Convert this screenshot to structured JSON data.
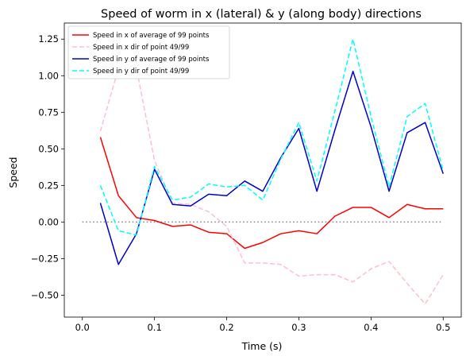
{
  "chart_data": {
    "type": "line",
    "title": "Speed of worm in x (lateral) & y (along body) directions",
    "xlabel": "Time (s)",
    "ylabel": "Speed",
    "xlim": [
      -0.025,
      0.525
    ],
    "ylim": [
      -0.65,
      1.36
    ],
    "xticks": [
      0.0,
      0.1,
      0.2,
      0.3,
      0.4,
      0.5
    ],
    "xtick_labels": [
      "0.0",
      "0.1",
      "0.2",
      "0.3",
      "0.4",
      "0.5"
    ],
    "yticks": [
      -0.5,
      -0.25,
      0.0,
      0.25,
      0.5,
      0.75,
      1.0,
      1.25
    ],
    "ytick_labels": [
      "−0.50",
      "−0.25",
      "0.00",
      "0.25",
      "0.50",
      "0.75",
      "1.00",
      "1.25"
    ],
    "legend_position": "top-left",
    "grid": false,
    "reference_line": {
      "x": [
        0.0,
        0.5
      ],
      "y": 0.0,
      "color": "#808080",
      "style": "dotted"
    },
    "x": [
      0.025,
      0.05,
      0.075,
      0.1,
      0.125,
      0.15,
      0.175,
      0.2,
      0.225,
      0.25,
      0.275,
      0.3,
      0.325,
      0.35,
      0.375,
      0.4,
      0.425,
      0.45,
      0.475,
      0.5
    ],
    "series": [
      {
        "name": "Speed in x of average of 99 points",
        "color": "#ff0000",
        "style": "solid",
        "values": [
          0.58,
          0.18,
          0.03,
          0.01,
          -0.03,
          -0.02,
          -0.07,
          -0.08,
          -0.18,
          -0.14,
          -0.08,
          -0.06,
          -0.08,
          0.04,
          0.1,
          0.1,
          0.03,
          0.12,
          0.09,
          0.09
        ]
      },
      {
        "name": "Speed in x dir of point 49/99",
        "color": "#ffc0cb",
        "style": "dashed",
        "values": [
          0.62,
          1.05,
          1.05,
          0.42,
          0.13,
          0.12,
          0.07,
          -0.03,
          -0.28,
          -0.28,
          -0.29,
          -0.37,
          -0.36,
          -0.36,
          -0.41,
          -0.32,
          -0.27,
          -0.42,
          -0.56,
          -0.36
        ]
      },
      {
        "name": "Speed in y of average of 99 points",
        "color": "#0000cd",
        "style": "solid",
        "values": [
          0.13,
          -0.29,
          -0.08,
          0.36,
          0.12,
          0.11,
          0.19,
          0.18,
          0.28,
          0.21,
          0.44,
          0.64,
          0.21,
          0.63,
          1.03,
          0.65,
          0.21,
          0.61,
          0.68,
          0.33
        ]
      },
      {
        "name": "Speed in y dir of point 49/99",
        "color": "#00ffff",
        "style": "dashed",
        "values": [
          0.25,
          -0.06,
          -0.09,
          0.38,
          0.15,
          0.17,
          0.26,
          0.24,
          0.25,
          0.15,
          0.43,
          0.68,
          0.28,
          0.76,
          1.25,
          0.72,
          0.24,
          0.72,
          0.81,
          0.35
        ]
      }
    ]
  }
}
